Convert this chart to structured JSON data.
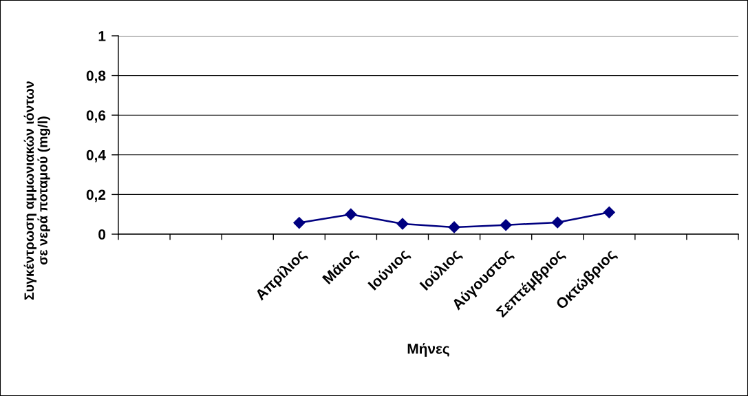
{
  "chart_data": {
    "type": "line",
    "xlabel": "Μήνες",
    "ylabel": "Συγκέντρωση αμμωνιακών ιόντων\nσε νερά ποταμού (mg/l)",
    "categories": [
      null,
      null,
      null,
      "Απρίλιος",
      "Μάιος",
      "Ιούνιος",
      "Ιούλιος",
      "Αύγουστος",
      "Σεπτέμβριος",
      "Οκτώβριος",
      null,
      null
    ],
    "series": [
      {
        "color": "#000080",
        "values": [
          null,
          null,
          null,
          0.057,
          0.1,
          0.052,
          0.035,
          0.046,
          0.059,
          0.11,
          null,
          null
        ]
      }
    ],
    "ylim": [
      0,
      1
    ],
    "yticks": [
      0,
      {
        "value": 0.2,
        "label": "0,2"
      },
      {
        "value": 0.4,
        "label": "0,4"
      },
      {
        "value": 0.6,
        "label": "0,6"
      },
      {
        "value": 0.8,
        "label": "0,8"
      },
      1
    ],
    "grid": "y",
    "marker": "diamond",
    "line_style": "solid"
  }
}
